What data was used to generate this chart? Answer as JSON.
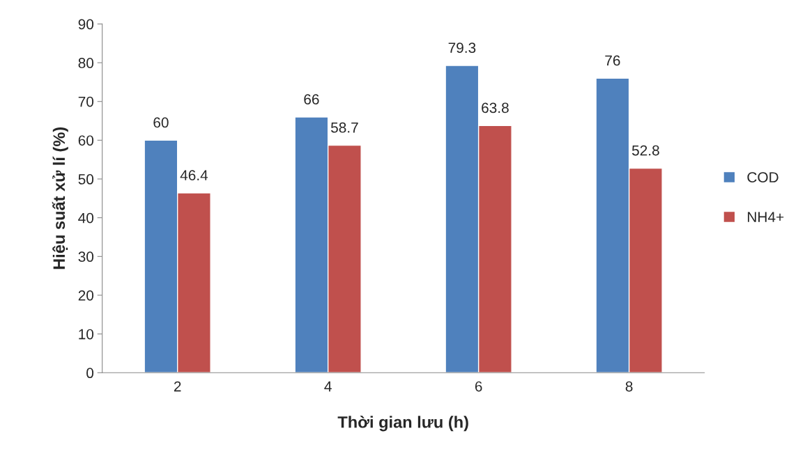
{
  "chart_data": {
    "type": "bar",
    "xlabel": "Thời gian lưu (h)",
    "ylabel": "Hiệu suất xử lí (%)",
    "categories": [
      "2",
      "4",
      "6",
      "8"
    ],
    "series": [
      {
        "name": "COD",
        "color": "#4f81bd",
        "values": [
          60,
          66,
          79.3,
          76
        ]
      },
      {
        "name": "NH4+",
        "color": "#c0504d",
        "values": [
          46.4,
          58.7,
          63.8,
          52.8
        ]
      }
    ],
    "ylim": [
      0,
      90
    ],
    "yticks": [
      0,
      10,
      20,
      30,
      40,
      50,
      60,
      70,
      80,
      90
    ],
    "data_labels": true,
    "legend": "right",
    "grid": false
  }
}
